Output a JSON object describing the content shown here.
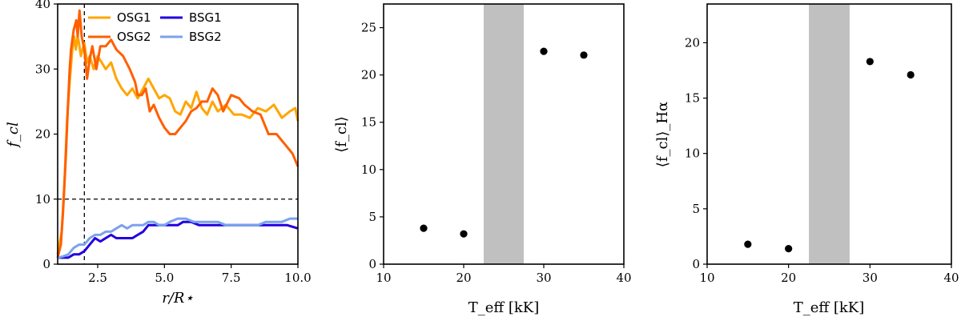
{
  "chart_data": [
    {
      "type": "line",
      "xlabel": "r/R⋆",
      "ylabel": "f_cl",
      "xlim": [
        1.0,
        10.0
      ],
      "ylim": [
        0,
        40
      ],
      "xticks": [
        "2.5",
        "5.0",
        "7.5",
        "10.0"
      ],
      "yticks": [
        "0",
        "10",
        "20",
        "30",
        "40"
      ],
      "legend_position": "top-right",
      "reference_lines": {
        "vertical_x": 2.0,
        "horizontal_y": 10.0
      },
      "series": [
        {
          "name": "OSG1",
          "color": "#ffa500",
          "points": [
            [
              1.0,
              1.5
            ],
            [
              1.15,
              5
            ],
            [
              1.25,
              12
            ],
            [
              1.35,
              22
            ],
            [
              1.45,
              28
            ],
            [
              1.55,
              33
            ],
            [
              1.62,
              35
            ],
            [
              1.68,
              33
            ],
            [
              1.75,
              35
            ],
            [
              1.8,
              34
            ],
            [
              1.87,
              32
            ],
            [
              1.93,
              33
            ],
            [
              2.0,
              34
            ],
            [
              2.1,
              31
            ],
            [
              2.2,
              32
            ],
            [
              2.35,
              30
            ],
            [
              2.5,
              32
            ],
            [
              2.65,
              31
            ],
            [
              2.8,
              30
            ],
            [
              3.0,
              31
            ],
            [
              3.2,
              28.5
            ],
            [
              3.4,
              27
            ],
            [
              3.6,
              26
            ],
            [
              3.8,
              27
            ],
            [
              4.0,
              25.5
            ],
            [
              4.2,
              27
            ],
            [
              4.4,
              28.5
            ],
            [
              4.6,
              27
            ],
            [
              4.8,
              25.5
            ],
            [
              5.0,
              26
            ],
            [
              5.2,
              25.5
            ],
            [
              5.4,
              23.5
            ],
            [
              5.6,
              23
            ],
            [
              5.8,
              25
            ],
            [
              6.0,
              24
            ],
            [
              6.2,
              26.5
            ],
            [
              6.4,
              24
            ],
            [
              6.6,
              23
            ],
            [
              6.8,
              25
            ],
            [
              7.0,
              23.5
            ],
            [
              7.3,
              24.5
            ],
            [
              7.6,
              23
            ],
            [
              7.9,
              23
            ],
            [
              8.2,
              22.5
            ],
            [
              8.5,
              24
            ],
            [
              8.8,
              23.5
            ],
            [
              9.1,
              24.5
            ],
            [
              9.4,
              22.5
            ],
            [
              9.7,
              23.5
            ],
            [
              9.9,
              24
            ],
            [
              10.0,
              22
            ]
          ]
        },
        {
          "name": "OSG2",
          "color": "#ff5f00",
          "points": [
            [
              1.0,
              1
            ],
            [
              1.12,
              3
            ],
            [
              1.2,
              8
            ],
            [
              1.3,
              16
            ],
            [
              1.38,
              24
            ],
            [
              1.45,
              30
            ],
            [
              1.5,
              33
            ],
            [
              1.6,
              36
            ],
            [
              1.7,
              37.5
            ],
            [
              1.75,
              35
            ],
            [
              1.82,
              39
            ],
            [
              1.9,
              35
            ],
            [
              2.0,
              33
            ],
            [
              2.1,
              28.5
            ],
            [
              2.2,
              31.5
            ],
            [
              2.3,
              33.5
            ],
            [
              2.45,
              30
            ],
            [
              2.6,
              33.5
            ],
            [
              2.8,
              33.5
            ],
            [
              3.0,
              34.5
            ],
            [
              3.2,
              33
            ],
            [
              3.45,
              32
            ],
            [
              3.7,
              30
            ],
            [
              3.9,
              28
            ],
            [
              4.0,
              26
            ],
            [
              4.15,
              26
            ],
            [
              4.3,
              27
            ],
            [
              4.45,
              23.5
            ],
            [
              4.6,
              24.5
            ],
            [
              4.8,
              22.5
            ],
            [
              5.0,
              21
            ],
            [
              5.2,
              20
            ],
            [
              5.4,
              20
            ],
            [
              5.6,
              21
            ],
            [
              5.8,
              22
            ],
            [
              6.0,
              23.5
            ],
            [
              6.2,
              24
            ],
            [
              6.4,
              25
            ],
            [
              6.6,
              25
            ],
            [
              6.8,
              27
            ],
            [
              7.0,
              26
            ],
            [
              7.2,
              23.5
            ],
            [
              7.5,
              26
            ],
            [
              7.8,
              25.5
            ],
            [
              8.0,
              24.5
            ],
            [
              8.3,
              23.5
            ],
            [
              8.6,
              23
            ],
            [
              8.9,
              20
            ],
            [
              9.2,
              20
            ],
            [
              9.5,
              18.5
            ],
            [
              9.8,
              17
            ],
            [
              10.0,
              15
            ]
          ]
        },
        {
          "name": "BSG1",
          "color": "#2200e0",
          "points": [
            [
              1.0,
              1
            ],
            [
              1.2,
              1
            ],
            [
              1.4,
              1
            ],
            [
              1.6,
              1.5
            ],
            [
              1.8,
              1.5
            ],
            [
              2.0,
              2
            ],
            [
              2.2,
              3
            ],
            [
              2.4,
              4
            ],
            [
              2.6,
              3.5
            ],
            [
              2.8,
              4
            ],
            [
              3.0,
              4.5
            ],
            [
              3.2,
              4
            ],
            [
              3.4,
              4
            ],
            [
              3.6,
              4
            ],
            [
              3.8,
              4
            ],
            [
              4.0,
              4.5
            ],
            [
              4.2,
              5
            ],
            [
              4.4,
              6
            ],
            [
              4.6,
              6
            ],
            [
              4.8,
              6
            ],
            [
              5.0,
              6
            ],
            [
              5.2,
              6
            ],
            [
              5.5,
              6
            ],
            [
              5.7,
              6.5
            ],
            [
              6.0,
              6.5
            ],
            [
              6.3,
              6
            ],
            [
              6.6,
              6
            ],
            [
              6.9,
              6
            ],
            [
              7.2,
              6
            ],
            [
              7.5,
              6
            ],
            [
              7.8,
              6
            ],
            [
              8.1,
              6
            ],
            [
              8.4,
              6
            ],
            [
              8.7,
              6
            ],
            [
              9.0,
              6
            ],
            [
              9.3,
              6
            ],
            [
              9.6,
              6
            ],
            [
              10.0,
              5.5
            ]
          ]
        },
        {
          "name": "BSG2",
          "color": "#7aa2ee",
          "points": [
            [
              1.0,
              1
            ],
            [
              1.2,
              1.2
            ],
            [
              1.4,
              1.5
            ],
            [
              1.6,
              2.5
            ],
            [
              1.8,
              3
            ],
            [
              2.0,
              3
            ],
            [
              2.2,
              4
            ],
            [
              2.4,
              4.5
            ],
            [
              2.6,
              4.5
            ],
            [
              2.8,
              5
            ],
            [
              3.0,
              5
            ],
            [
              3.2,
              5.5
            ],
            [
              3.4,
              6
            ],
            [
              3.6,
              5.5
            ],
            [
              3.8,
              6
            ],
            [
              4.0,
              6
            ],
            [
              4.2,
              6
            ],
            [
              4.4,
              6.5
            ],
            [
              4.6,
              6.5
            ],
            [
              4.8,
              6
            ],
            [
              5.0,
              6
            ],
            [
              5.2,
              6.5
            ],
            [
              5.5,
              7
            ],
            [
              5.8,
              7
            ],
            [
              6.1,
              6.5
            ],
            [
              6.4,
              6.5
            ],
            [
              6.7,
              6.5
            ],
            [
              7.0,
              6.5
            ],
            [
              7.3,
              6
            ],
            [
              7.6,
              6
            ],
            [
              7.9,
              6
            ],
            [
              8.2,
              6
            ],
            [
              8.5,
              6
            ],
            [
              8.8,
              6.5
            ],
            [
              9.1,
              6.5
            ],
            [
              9.4,
              6.5
            ],
            [
              9.7,
              7
            ],
            [
              10.0,
              7
            ]
          ]
        }
      ]
    },
    {
      "type": "scatter",
      "xlabel": "T_eff [kK]",
      "ylabel": "⟨f_cl⟩",
      "xlim": [
        10,
        40
      ],
      "ylim": [
        0,
        27.5
      ],
      "xticks": [
        "10",
        "20",
        "30",
        "40"
      ],
      "yticks": [
        "0",
        "5",
        "10",
        "15",
        "20",
        "25"
      ],
      "shaded_band_x": [
        22.5,
        27.5
      ],
      "shaded_color": "#c0c0c0",
      "x": [
        15,
        20,
        30,
        35
      ],
      "y": [
        3.8,
        3.2,
        22.5,
        22.1
      ]
    },
    {
      "type": "scatter",
      "xlabel": "T_eff [kK]",
      "ylabel": "⟨f_cl⟩_Hα",
      "xlim": [
        10,
        40
      ],
      "ylim": [
        0,
        23.5
      ],
      "xticks": [
        "10",
        "20",
        "30",
        "40"
      ],
      "yticks": [
        "0",
        "5",
        "10",
        "15",
        "20"
      ],
      "shaded_band_x": [
        22.5,
        27.5
      ],
      "shaded_color": "#c0c0c0",
      "x": [
        15,
        20,
        30,
        35
      ],
      "y": [
        1.8,
        1.4,
        18.3,
        17.1
      ]
    }
  ]
}
